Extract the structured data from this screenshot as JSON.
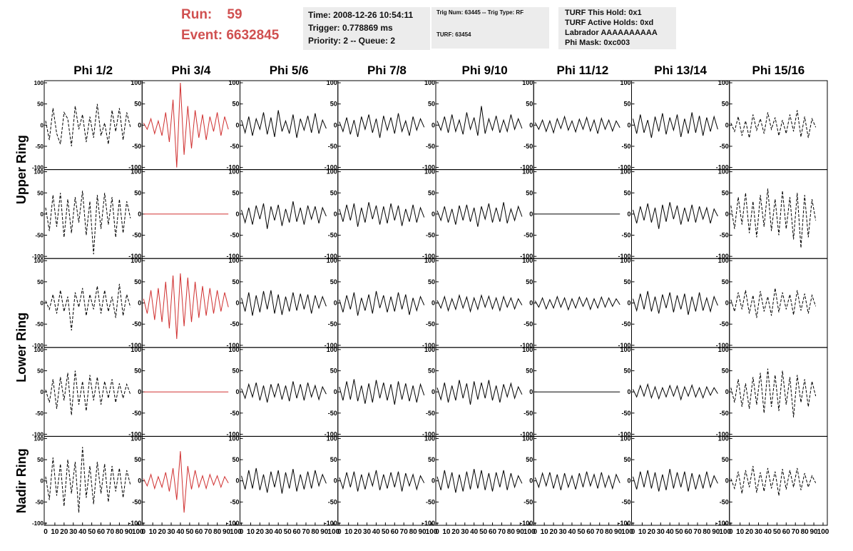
{
  "header": {
    "run_label": "Run:",
    "run": "59",
    "event_label": "Event:",
    "event": "6632845",
    "info1": [
      "Time: 2008-12-26 10:54:11",
      "Trigger: 0.778869 ms",
      "Priority: 2 -- Queue: 2"
    ],
    "info2": [
      "Trig Num: 63445 -- Trig Type: RF",
      "TURF: 63454"
    ],
    "info3": [
      "TURF This Hold: 0x1",
      "TURF Active Holds: 0xd",
      "Labrador AAAAAAAAAA",
      "Phi Mask: 0xc003"
    ]
  },
  "chart_data": {
    "type": "waveform-grid",
    "columns": [
      "Phi 1/2",
      "Phi 3/4",
      "Phi 5/6",
      "Phi 7/8",
      "Phi 9/10",
      "Phi 11/12",
      "Phi 13/14",
      "Phi 15/16"
    ],
    "rows": [
      "Upper Ring",
      "Lower Ring",
      "Nadir Ring"
    ],
    "x": [
      0,
      4,
      8,
      12,
      16,
      20,
      24,
      28,
      32,
      36,
      40,
      44,
      48,
      52,
      56,
      60,
      64,
      68,
      72,
      76,
      80,
      84,
      88,
      92
    ],
    "xlim": [
      0,
      100
    ],
    "xticks": [
      0,
      10,
      20,
      30,
      40,
      50,
      60,
      70,
      80,
      90,
      100
    ],
    "ylim": [
      -100,
      100
    ],
    "yticks": [
      -100,
      -50,
      0,
      50,
      100
    ],
    "series": [
      {
        "color": "#000000",
        "dashed": true,
        "values": [
          10,
          -35,
          40,
          -20,
          -45,
          30,
          15,
          -50,
          45,
          -10,
          25,
          -40,
          20,
          -30,
          50,
          -25,
          5,
          -45,
          35,
          -15,
          40,
          -35,
          30,
          -5
        ]
      },
      {
        "color": "#d03030",
        "dashed": false,
        "values": [
          5,
          -10,
          15,
          -20,
          10,
          -25,
          30,
          -40,
          60,
          -100,
          100,
          -70,
          45,
          -55,
          35,
          -30,
          25,
          -35,
          20,
          -15,
          30,
          -25,
          20,
          -10
        ]
      },
      {
        "color": "#000000",
        "dashed": false,
        "values": [
          12,
          -18,
          20,
          -25,
          15,
          -10,
          30,
          -22,
          18,
          -28,
          35,
          -15,
          10,
          -20,
          25,
          -30,
          15,
          -12,
          22,
          -18,
          28,
          -20,
          12,
          -8
        ]
      },
      {
        "color": "#000000",
        "dashed": false,
        "values": [
          8,
          -15,
          18,
          -22,
          12,
          -28,
          20,
          -10,
          25,
          -18,
          15,
          -30,
          22,
          -12,
          18,
          -20,
          28,
          -15,
          10,
          -25,
          20,
          -12,
          15,
          -5
        ]
      },
      {
        "color": "#000000",
        "dashed": false,
        "values": [
          10,
          -12,
          20,
          -18,
          25,
          -15,
          12,
          -22,
          30,
          -10,
          18,
          -25,
          45,
          -20,
          15,
          -12,
          22,
          -18,
          12,
          -15,
          25,
          -10,
          15,
          -8
        ]
      },
      {
        "color": "#000000",
        "dashed": false,
        "values": [
          6,
          -10,
          12,
          -15,
          10,
          -18,
          15,
          -8,
          20,
          -12,
          10,
          -16,
          14,
          -10,
          18,
          -14,
          12,
          -20,
          16,
          -10,
          12,
          -14,
          10,
          -6
        ]
      },
      {
        "color": "#000000",
        "dashed": false,
        "values": [
          15,
          -20,
          25,
          -18,
          12,
          -30,
          20,
          -15,
          28,
          -22,
          18,
          -12,
          25,
          -28,
          15,
          -20,
          30,
          -18,
          22,
          -25,
          18,
          -15,
          20,
          -10
        ]
      },
      {
        "color": "#000000",
        "dashed": true,
        "values": [
          5,
          -15,
          20,
          -25,
          10,
          -30,
          25,
          -12,
          15,
          -20,
          30,
          -10,
          18,
          -25,
          12,
          -20,
          25,
          -15,
          35,
          -28,
          20,
          -30,
          15,
          -5
        ]
      },
      {
        "color": "#000000",
        "dashed": true,
        "values": [
          15,
          -40,
          45,
          -30,
          50,
          -55,
          35,
          -45,
          40,
          -20,
          55,
          -50,
          30,
          -95,
          45,
          -35,
          50,
          -25,
          40,
          -55,
          35,
          -45,
          30,
          -10
        ]
      },
      {
        "color": "#d03030",
        "dashed": false,
        "values": [
          0,
          0,
          0,
          0,
          0,
          0,
          0,
          0,
          0,
          0,
          0,
          0,
          0,
          0,
          0,
          0,
          0,
          0,
          0,
          0,
          0,
          0,
          0,
          0
        ]
      },
      {
        "color": "#000000",
        "dashed": false,
        "values": [
          10,
          -20,
          15,
          -25,
          20,
          -12,
          25,
          -35,
          18,
          -15,
          22,
          -28,
          12,
          -20,
          30,
          -18,
          15,
          -25,
          20,
          -12,
          18,
          -22,
          15,
          -5
        ]
      },
      {
        "color": "#000000",
        "dashed": false,
        "values": [
          12,
          -18,
          22,
          -15,
          25,
          -30,
          15,
          -20,
          28,
          -12,
          20,
          -25,
          18,
          -22,
          25,
          -15,
          20,
          -28,
          12,
          -18,
          22,
          -20,
          15,
          -8
        ]
      },
      {
        "color": "#000000",
        "dashed": false,
        "values": [
          8,
          -15,
          18,
          -20,
          12,
          -25,
          20,
          -15,
          22,
          -18,
          15,
          -30,
          18,
          -12,
          25,
          -20,
          15,
          -18,
          28,
          -22,
          12,
          -15,
          18,
          -6
        ]
      },
      {
        "color": "#000000",
        "dashed": false,
        "values": [
          0,
          0,
          0,
          0,
          0,
          0,
          0,
          0,
          0,
          0,
          0,
          0,
          0,
          0,
          0,
          0,
          0,
          0,
          0,
          0,
          0,
          0,
          0,
          0
        ]
      },
      {
        "color": "#000000",
        "dashed": false,
        "values": [
          10,
          -22,
          18,
          -15,
          25,
          -20,
          15,
          -35,
          22,
          -18,
          28,
          -12,
          20,
          -25,
          15,
          -18,
          22,
          -20,
          18,
          -12,
          15,
          -22,
          12,
          -5
        ]
      },
      {
        "color": "#000000",
        "dashed": true,
        "values": [
          20,
          -35,
          40,
          -25,
          50,
          -45,
          30,
          -55,
          45,
          -30,
          60,
          -40,
          35,
          -50,
          55,
          -35,
          40,
          -60,
          50,
          -80,
          45,
          -55,
          35,
          -15
        ]
      },
      {
        "color": "#000000",
        "dashed": true,
        "values": [
          5,
          -15,
          20,
          -25,
          30,
          -20,
          15,
          -65,
          25,
          -10,
          35,
          -30,
          20,
          -15,
          40,
          -25,
          30,
          -20,
          15,
          -35,
          45,
          -30,
          20,
          -10
        ]
      },
      {
        "color": "#d03030",
        "dashed": false,
        "values": [
          10,
          -25,
          30,
          -40,
          35,
          -45,
          50,
          -60,
          65,
          -85,
          70,
          -55,
          60,
          -45,
          50,
          -35,
          40,
          -30,
          35,
          -25,
          30,
          -20,
          25,
          -10
        ]
      },
      {
        "color": "#000000",
        "dashed": false,
        "values": [
          12,
          -20,
          25,
          -30,
          18,
          -22,
          28,
          -15,
          30,
          -25,
          20,
          -28,
          15,
          -20,
          25,
          -18,
          22,
          -15,
          20,
          -25,
          18,
          -12,
          15,
          -8
        ]
      },
      {
        "color": "#000000",
        "dashed": false,
        "values": [
          8,
          -22,
          18,
          -15,
          25,
          -30,
          12,
          -18,
          20,
          -25,
          28,
          -12,
          18,
          -22,
          15,
          -20,
          25,
          -15,
          20,
          -28,
          12,
          -18,
          15,
          -5
        ]
      },
      {
        "color": "#000000",
        "dashed": false,
        "values": [
          6,
          -12,
          15,
          -18,
          10,
          -15,
          18,
          -12,
          14,
          -20,
          12,
          -15,
          18,
          -10,
          16,
          -14,
          12,
          -18,
          15,
          -10,
          12,
          -14,
          10,
          -5
        ]
      },
      {
        "color": "#000000",
        "dashed": false,
        "values": [
          5,
          -10,
          12,
          -14,
          8,
          -12,
          15,
          -10,
          12,
          -16,
          10,
          -12,
          14,
          -8,
          12,
          -15,
          10,
          -12,
          14,
          -10,
          12,
          -8,
          10,
          -4
        ]
      },
      {
        "color": "#000000",
        "dashed": false,
        "values": [
          10,
          -18,
          22,
          -15,
          28,
          -20,
          15,
          -25,
          20,
          -12,
          25,
          -22,
          18,
          -15,
          22,
          -28,
          15,
          -20,
          25,
          -18,
          12,
          -20,
          15,
          -6
        ]
      },
      {
        "color": "#000000",
        "dashed": true,
        "values": [
          8,
          -20,
          25,
          -15,
          30,
          -25,
          18,
          -35,
          28,
          -20,
          15,
          -30,
          35,
          -22,
          25,
          -15,
          20,
          -28,
          30,
          -18,
          22,
          -25,
          18,
          -8
        ]
      },
      {
        "color": "#000000",
        "dashed": true,
        "values": [
          5,
          -25,
          30,
          -40,
          35,
          -20,
          45,
          -55,
          50,
          -30,
          25,
          -45,
          40,
          -20,
          35,
          -30,
          25,
          -15,
          30,
          -25,
          20,
          -15,
          18,
          -6
        ]
      },
      {
        "color": "#d03030",
        "dashed": false,
        "values": [
          0,
          0,
          0,
          0,
          0,
          0,
          0,
          0,
          0,
          0,
          0,
          0,
          0,
          0,
          0,
          0,
          0,
          0,
          0,
          0,
          0,
          0,
          0,
          0
        ]
      },
      {
        "color": "#000000",
        "dashed": false,
        "values": [
          8,
          -15,
          18,
          -12,
          22,
          -20,
          15,
          -25,
          18,
          -12,
          20,
          -18,
          15,
          -22,
          25,
          -15,
          18,
          -20,
          22,
          -12,
          15,
          -18,
          12,
          -5
        ]
      },
      {
        "color": "#000000",
        "dashed": false,
        "values": [
          12,
          -20,
          25,
          -18,
          30,
          -22,
          15,
          -28,
          20,
          -25,
          28,
          -15,
          22,
          -20,
          18,
          -30,
          25,
          -18,
          20,
          -22,
          15,
          -25,
          18,
          -8
        ]
      },
      {
        "color": "#000000",
        "dashed": false,
        "values": [
          10,
          -18,
          22,
          -25,
          15,
          -20,
          28,
          -15,
          20,
          -30,
          25,
          -18,
          22,
          -15,
          28,
          -20,
          15,
          -25,
          18,
          -12,
          20,
          -15,
          12,
          -6
        ]
      },
      {
        "color": "#000000",
        "dashed": false,
        "values": [
          0,
          0,
          0,
          0,
          0,
          0,
          0,
          0,
          0,
          0,
          0,
          0,
          0,
          0,
          0,
          0,
          0,
          0,
          0,
          0,
          0,
          0,
          0,
          0
        ]
      },
      {
        "color": "#000000",
        "dashed": false,
        "values": [
          6,
          -12,
          15,
          -10,
          18,
          -14,
          12,
          -16,
          10,
          -12,
          15,
          -10,
          14,
          -18,
          12,
          -10,
          16,
          -12,
          10,
          -14,
          12,
          -8,
          10,
          -4
        ]
      },
      {
        "color": "#000000",
        "dashed": true,
        "values": [
          10,
          -25,
          30,
          -35,
          20,
          -40,
          35,
          -30,
          45,
          -50,
          55,
          -35,
          40,
          -45,
          50,
          -30,
          35,
          -60,
          40,
          -25,
          30,
          -35,
          25,
          -10
        ]
      },
      {
        "color": "#000000",
        "dashed": true,
        "values": [
          10,
          -45,
          55,
          -35,
          40,
          -60,
          50,
          -30,
          45,
          -75,
          80,
          -40,
          35,
          -55,
          45,
          -30,
          40,
          -50,
          35,
          -25,
          30,
          -40,
          25,
          -10
        ]
      },
      {
        "color": "#d03030",
        "dashed": false,
        "values": [
          5,
          -12,
          15,
          -18,
          10,
          -15,
          20,
          -25,
          30,
          -45,
          70,
          -75,
          35,
          -20,
          25,
          -15,
          12,
          -18,
          15,
          -10,
          12,
          -15,
          10,
          -5
        ]
      },
      {
        "color": "#000000",
        "dashed": false,
        "values": [
          12,
          -20,
          25,
          -18,
          30,
          -22,
          15,
          -28,
          22,
          -15,
          25,
          -30,
          20,
          -18,
          28,
          -25,
          15,
          -20,
          22,
          -18,
          25,
          -12,
          15,
          -6
        ]
      },
      {
        "color": "#000000",
        "dashed": false,
        "values": [
          8,
          -18,
          20,
          -15,
          22,
          -25,
          15,
          -20,
          18,
          -12,
          25,
          -22,
          15,
          -18,
          20,
          -15,
          22,
          -25,
          18,
          -12,
          15,
          -20,
          12,
          -5
        ]
      },
      {
        "color": "#000000",
        "dashed": false,
        "values": [
          10,
          -22,
          25,
          -18,
          20,
          -28,
          15,
          -25,
          22,
          -20,
          28,
          -18,
          25,
          -22,
          18,
          -25,
          20,
          -15,
          25,
          -22,
          18,
          -15,
          12,
          -6
        ]
      },
      {
        "color": "#000000",
        "dashed": false,
        "values": [
          8,
          -15,
          18,
          -12,
          20,
          -18,
          15,
          -22,
          18,
          -15,
          12,
          -20,
          18,
          -15,
          22,
          -12,
          15,
          -18,
          20,
          -15,
          12,
          -18,
          15,
          -5
        ]
      },
      {
        "color": "#000000",
        "dashed": false,
        "values": [
          10,
          -20,
          22,
          -15,
          25,
          -18,
          20,
          -25,
          15,
          -22,
          28,
          -18,
          20,
          -15,
          22,
          -25,
          18,
          -20,
          15,
          -18,
          22,
          -15,
          12,
          -6
        ]
      },
      {
        "color": "#000000",
        "dashed": true,
        "values": [
          5,
          -18,
          22,
          -30,
          25,
          -15,
          35,
          -28,
          20,
          -25,
          30,
          -18,
          22,
          -35,
          28,
          -20,
          25,
          -15,
          30,
          -22,
          18,
          -15,
          12,
          -5
        ]
      }
    ]
  }
}
